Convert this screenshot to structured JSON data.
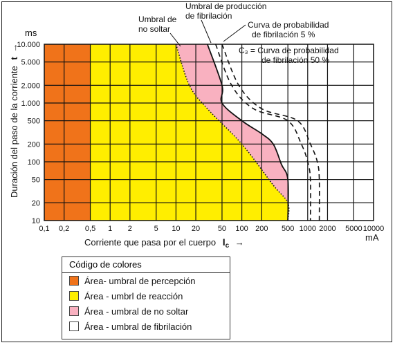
{
  "chart_data": {
    "type": "area",
    "title": "",
    "xlabel": "Corriente que pasa por el cuerpo",
    "xlabel_symbol": "I",
    "xlabel_subscript": "c",
    "xlabel_arrow": "→",
    "x_unit": "mA",
    "ylabel": "Duración del paso de la corriente",
    "ylabel_symbol": "t",
    "ylabel_arrow": "→",
    "y_unit": "ms",
    "x_scale": "log",
    "y_scale": "log",
    "xlim": [
      0.1,
      10000
    ],
    "ylim": [
      10,
      10000
    ],
    "x_ticks": [
      0.1,
      0.2,
      0.5,
      1,
      2,
      5,
      10,
      20,
      50,
      100,
      200,
      500,
      1000,
      2000,
      5000,
      10000
    ],
    "x_tick_labels": [
      "0,1",
      "0,2",
      "0,5",
      "1",
      "2",
      "5",
      "10",
      "20",
      "50",
      "100",
      "200",
      "500",
      "1000",
      "2000",
      "5000",
      "10000"
    ],
    "y_ticks": [
      10,
      20,
      50,
      100,
      200,
      500,
      1000,
      2000,
      5000,
      10000
    ],
    "y_tick_labels": [
      "10",
      "20",
      "50",
      "100",
      "200",
      "500",
      "1.000",
      "2.000",
      "5.000",
      "10.000"
    ],
    "grid": true,
    "regions": [
      {
        "name": "Área- umbral de percepción",
        "color": "#f0731a",
        "x_from": 0.1,
        "x_to": 0.5
      },
      {
        "name": "Área - umbrl de reacción",
        "color": "#ffee00",
        "x_from": 0.5,
        "boundary": "c1"
      },
      {
        "name": "Área - umbral de no soltar",
        "color": "#f9b1c0",
        "boundary_from": "c1",
        "boundary_to": "c2"
      },
      {
        "name": "Área - umbral de fibrilación",
        "color": "#ffffff",
        "boundary_from": "c2"
      }
    ],
    "series": [
      {
        "key": "c1",
        "style": "dotted",
        "points": [
          [
            10,
            10000
          ],
          [
            16,
            2000
          ],
          [
            30,
            800
          ],
          [
            100,
            200
          ],
          [
            300,
            40
          ],
          [
            500,
            20
          ],
          [
            500,
            10
          ]
        ]
      },
      {
        "key": "c2",
        "style": "solid",
        "points": [
          [
            30,
            10000
          ],
          [
            50,
            2000
          ],
          [
            50,
            1000
          ],
          [
            100,
            500
          ],
          [
            200,
            300
          ],
          [
            300,
            200
          ],
          [
            400,
            90
          ],
          [
            500,
            50
          ],
          [
            500,
            10
          ]
        ]
      },
      {
        "key": "c3_5",
        "style": "dashed",
        "points": [
          [
            40,
            10000
          ],
          [
            70,
            2000
          ],
          [
            150,
            800
          ],
          [
            500,
            500
          ],
          [
            800,
            200
          ],
          [
            1000,
            100
          ],
          [
            1100,
            50
          ],
          [
            1100,
            10
          ]
        ]
      },
      {
        "key": "c3_50",
        "style": "dashed",
        "points": [
          [
            50,
            10000
          ],
          [
            90,
            2000
          ],
          [
            200,
            800
          ],
          [
            700,
            500
          ],
          [
            1100,
            200
          ],
          [
            1400,
            100
          ],
          [
            1500,
            50
          ],
          [
            1500,
            10
          ]
        ]
      }
    ],
    "annotations": {
      "no_soltar": [
        "Umbral de",
        "no soltar"
      ],
      "produccion": [
        "Umbral de producción",
        "de fibrilación"
      ],
      "curva5": [
        "Curva de probabilidad",
        "de fibrilación 5 %"
      ],
      "curva50": [
        "C₃ = Curva de probabilidad",
        "de fibrilación 50 %"
      ]
    }
  },
  "legend": {
    "title": "Código de colores",
    "items": [
      {
        "label": "Área- umbral de percepción",
        "color": "#f0731a"
      },
      {
        "label": "Área - umbrl de reacción",
        "color": "#ffee00"
      },
      {
        "label": "Área - umbral de no soltar",
        "color": "#f9b1c0"
      },
      {
        "label": "Área - umbral de fibrilación",
        "color": "#ffffff"
      }
    ]
  }
}
